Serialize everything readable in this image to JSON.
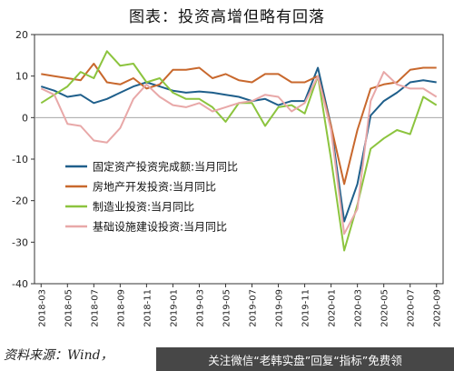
{
  "title": "图表：投资高增但略有回落",
  "source_note": "资料来源：Wind，",
  "watermark": "关注微信“老韩实盘”回复“指标”免费领",
  "chart_data": {
    "type": "line",
    "x": [
      "2018-03",
      "2018-04",
      "2018-05",
      "2018-06",
      "2018-07",
      "2018-08",
      "2018-09",
      "2018-10",
      "2018-11",
      "2018-12",
      "2019-01",
      "2019-02",
      "2019-03",
      "2019-04",
      "2019-05",
      "2019-06",
      "2019-07",
      "2019-08",
      "2019-09",
      "2019-10",
      "2019-11",
      "2019-12",
      "2020-01",
      "2020-02",
      "2020-03",
      "2020-04",
      "2020-05",
      "2020-06",
      "2020-07",
      "2020-08",
      "2020-09"
    ],
    "xticks": [
      "2018-03",
      "2018-05",
      "2018-07",
      "2018-09",
      "2018-11",
      "2019-01",
      "2019-03",
      "2019-05",
      "2019-07",
      "2019-09",
      "2019-11",
      "2020-01",
      "2020-03",
      "2020-05",
      "2020-07",
      "2020-09"
    ],
    "ylim": [
      -40,
      20
    ],
    "yticks": [
      20,
      10,
      0,
      -10,
      -20,
      -30,
      -40
    ],
    "legend_position": "left-center",
    "grid": false,
    "series": [
      {
        "name": "固定资产投资完成额:当月同比",
        "color": "#1f5f8b",
        "values": [
          7.5,
          6.5,
          5.0,
          5.5,
          3.5,
          4.5,
          6.0,
          7.5,
          8.5,
          7.5,
          6.5,
          6.0,
          6.3,
          6.0,
          5.5,
          5.0,
          4.0,
          4.5,
          3.0,
          4.0,
          4.0,
          12.0,
          -2.0,
          -25.0,
          -16.0,
          0.5,
          4.0,
          6.0,
          8.5,
          9.0,
          8.5
        ]
      },
      {
        "name": "房地产开发投资:当月同比",
        "color": "#c8682d",
        "values": [
          10.5,
          10.0,
          9.5,
          9.0,
          13.0,
          8.5,
          8.0,
          9.5,
          7.0,
          8.0,
          11.5,
          11.5,
          12.0,
          9.5,
          10.5,
          9.0,
          8.5,
          10.5,
          10.5,
          8.5,
          8.5,
          10.0,
          -2.0,
          -16.0,
          -3.0,
          7.0,
          8.0,
          8.5,
          11.5,
          12.0,
          12.0
        ]
      },
      {
        "name": "制造业投资:当月同比",
        "color": "#8cc43e",
        "values": [
          3.5,
          5.5,
          7.5,
          11.0,
          9.5,
          16.0,
          12.5,
          13.0,
          8.5,
          9.5,
          6.0,
          4.5,
          4.5,
          2.5,
          -1.0,
          3.5,
          3.5,
          -2.0,
          2.5,
          3.0,
          1.0,
          10.0,
          -10.0,
          -32.0,
          -21.0,
          -7.5,
          -5.0,
          -3.0,
          -4.0,
          5.0,
          3.0
        ]
      },
      {
        "name": "基础设施建设投资:当月同比",
        "color": "#e8a8a8",
        "values": [
          7.0,
          5.5,
          -1.5,
          -2.0,
          -5.5,
          -6.0,
          -2.5,
          4.5,
          8.0,
          5.0,
          3.0,
          2.5,
          3.5,
          1.5,
          2.5,
          3.5,
          4.0,
          5.5,
          5.0,
          1.5,
          3.5,
          10.0,
          -3.0,
          -28.0,
          -22.0,
          4.0,
          11.0,
          8.0,
          7.0,
          7.0,
          5.0
        ]
      }
    ]
  }
}
